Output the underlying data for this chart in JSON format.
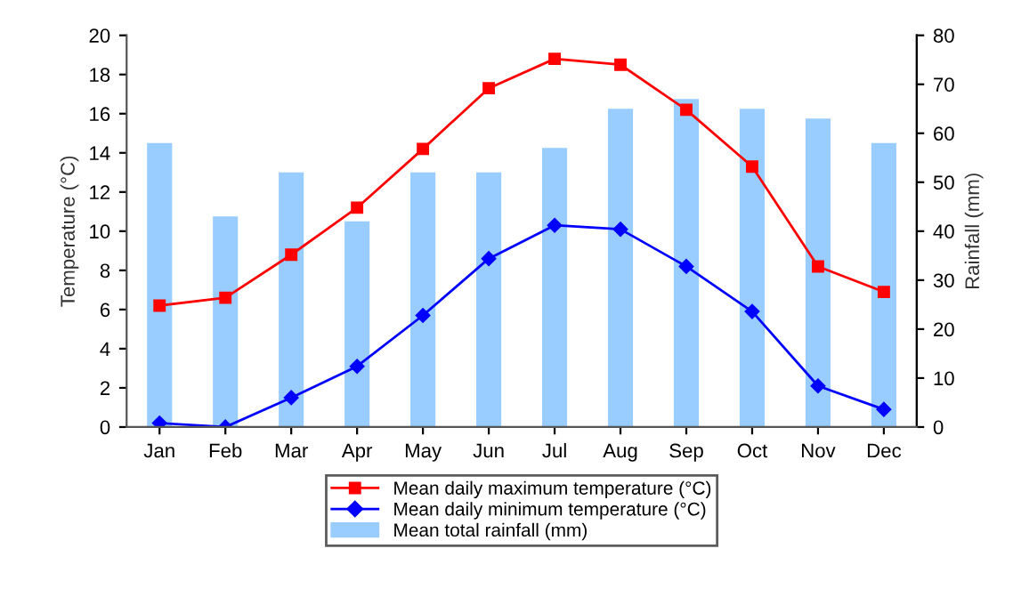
{
  "chart_data": {
    "type": "line",
    "ylabel": "Temperature (°C)",
    "y2label": "Rainfall (mm)",
    "categories": [
      "Jan",
      "Feb",
      "Mar",
      "Apr",
      "May",
      "Jun",
      "Jul",
      "Aug",
      "Sep",
      "Oct",
      "Nov",
      "Dec"
    ],
    "series": [
      {
        "name": "Mean daily maximum temperature (°C)",
        "color": "#ff0000",
        "marker": "square",
        "values": [
          6.2,
          6.6,
          8.8,
          11.2,
          14.2,
          17.3,
          18.8,
          18.5,
          16.2,
          13.3,
          8.2,
          6.9
        ]
      },
      {
        "name": "Mean daily minimum temperature (°C)",
        "color": "#0000ff",
        "marker": "diamond",
        "values": [
          0.2,
          0.0,
          1.5,
          3.1,
          5.7,
          8.6,
          10.3,
          10.1,
          8.2,
          5.9,
          2.1,
          0.9
        ]
      },
      {
        "name": "Mean total rainfall (mm)",
        "type": "bar",
        "axis": "y2",
        "color": "#99ccff",
        "values": [
          58,
          43,
          52,
          42,
          52,
          52,
          57,
          65,
          67,
          65,
          63,
          58
        ]
      }
    ],
    "ylim": [
      0,
      20
    ],
    "yticks": [
      0,
      2,
      4,
      6,
      8,
      10,
      12,
      14,
      16,
      18,
      20
    ],
    "y2lim": [
      0,
      80
    ],
    "y2ticks": [
      0,
      10,
      20,
      30,
      40,
      50,
      60,
      70,
      80
    ],
    "grid": false,
    "legend": "bottom"
  }
}
